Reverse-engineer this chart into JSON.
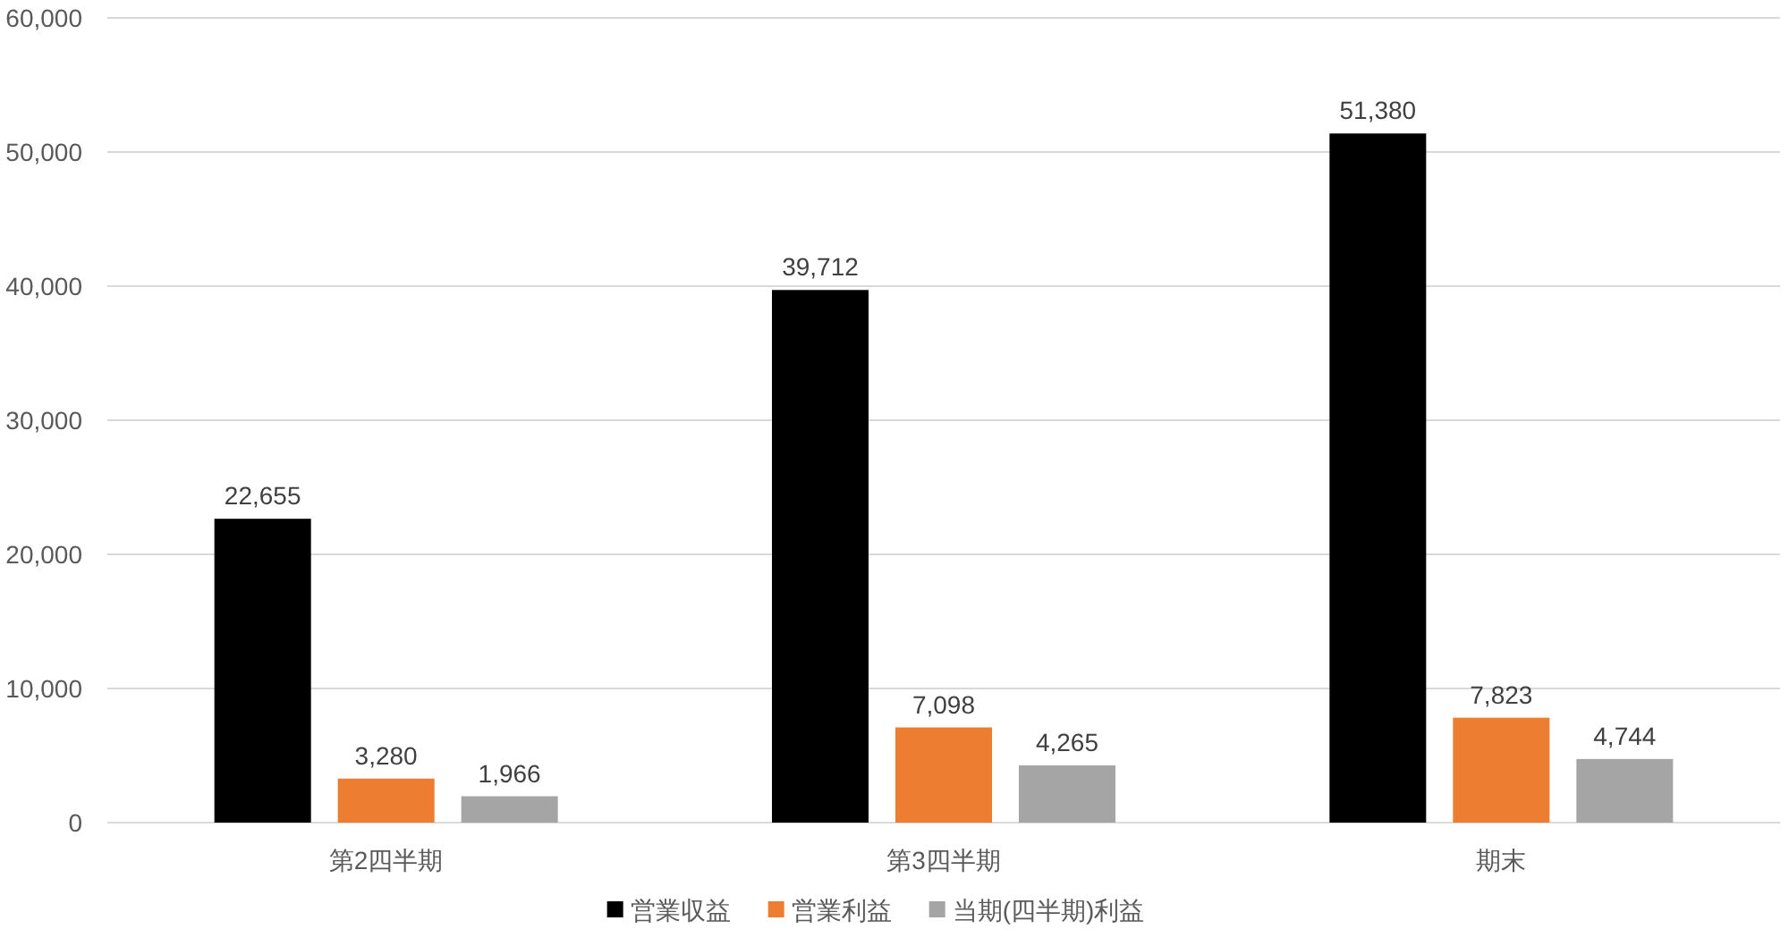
{
  "chart_data": {
    "type": "bar",
    "categories": [
      "第2四半期",
      "第3四半期",
      "期末"
    ],
    "series": [
      {
        "name": "営業収益",
        "color": "#000000",
        "values": [
          22655,
          39712,
          51380
        ],
        "value_labels": [
          "22,655",
          "39,712",
          "51,380"
        ]
      },
      {
        "name": "営業利益",
        "color": "#ed7d31",
        "values": [
          3280,
          7098,
          7823
        ],
        "value_labels": [
          "3,280",
          "7,098",
          "7,823"
        ]
      },
      {
        "name": "当期(四半期)利益",
        "color": "#a5a5a5",
        "values": [
          1966,
          4265,
          4744
        ],
        "value_labels": [
          "1,966",
          "4,265",
          "4,744"
        ]
      }
    ],
    "ylim": [
      0,
      60000
    ],
    "yticks": [
      0,
      {
        "value": 10000,
        "label": "10,000"
      },
      {
        "value": 20000,
        "label": "20,000"
      },
      {
        "value": 30000,
        "label": "30,000"
      },
      {
        "value": 40000,
        "label": "40,000"
      },
      {
        "value": 50000,
        "label": "50,000"
      },
      {
        "value": 60000,
        "label": "60,000"
      }
    ],
    "grid": "y",
    "legend": "bottom"
  }
}
